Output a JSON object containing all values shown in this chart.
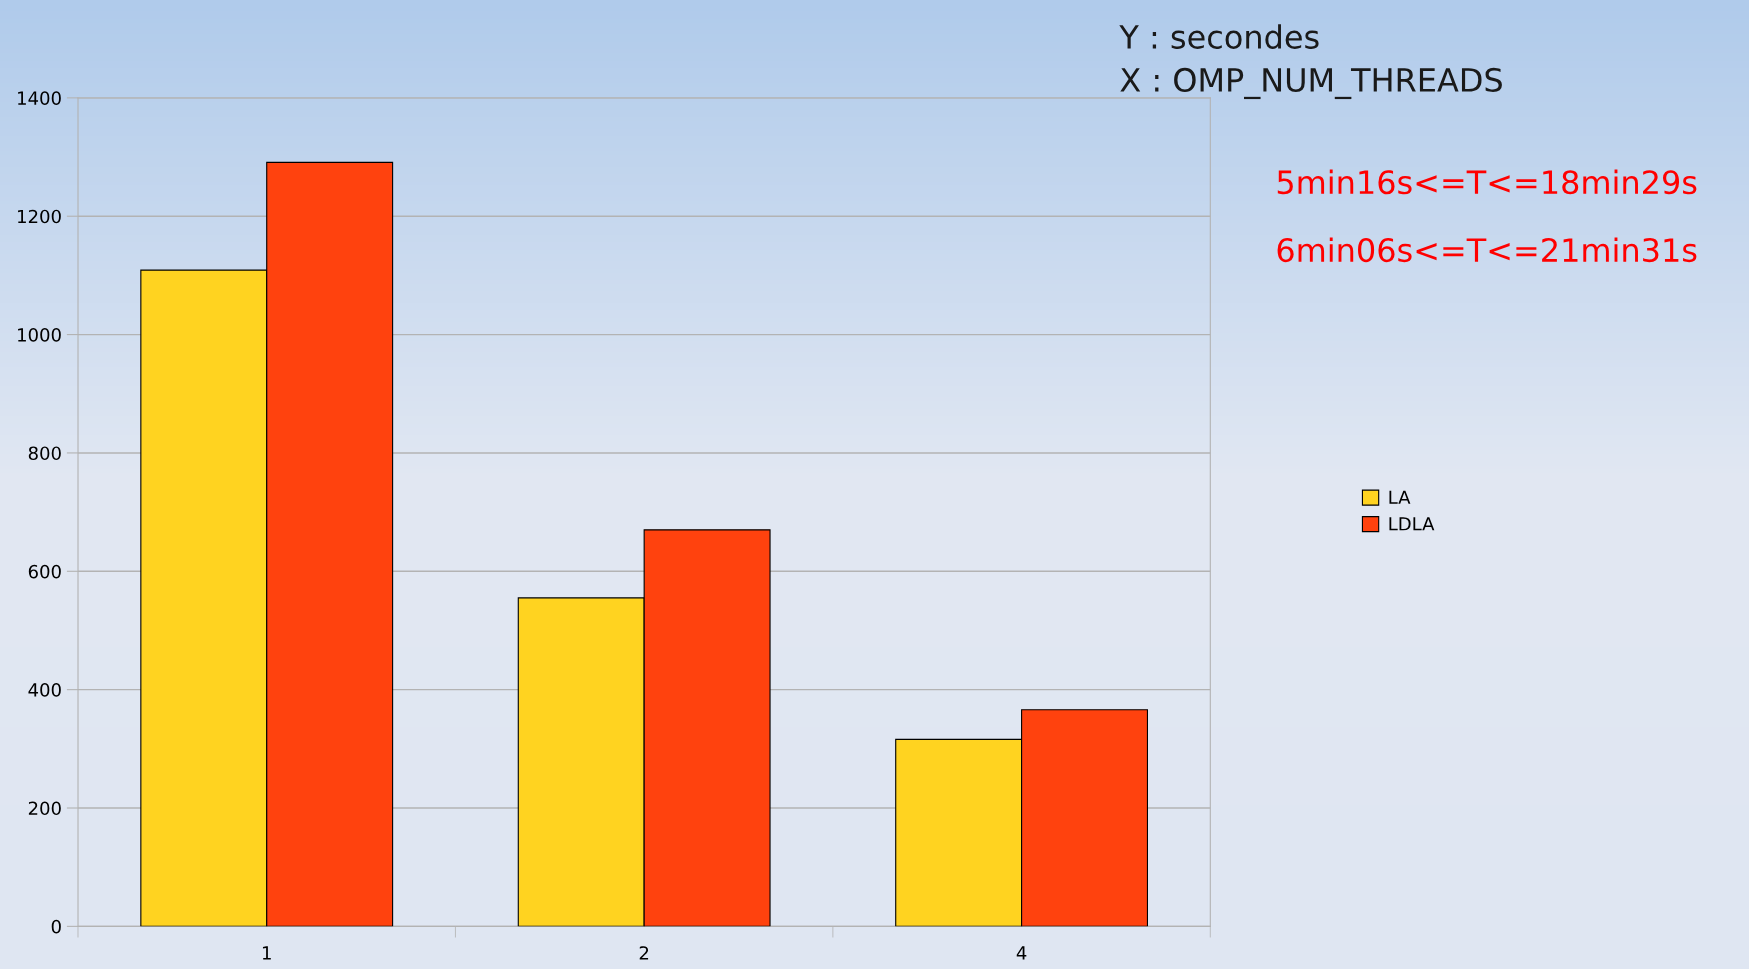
{
  "chart_data": {
    "type": "bar",
    "categories": [
      "1",
      "2",
      "4"
    ],
    "series": [
      {
        "name": "LA",
        "color": "#ffd320",
        "values": [
          1109,
          555,
          316
        ]
      },
      {
        "name": "LDLA",
        "color": "#ff420e",
        "values": [
          1291,
          670,
          366
        ]
      }
    ],
    "ylim": [
      0,
      1400
    ],
    "yticks": [
      0,
      200,
      400,
      600,
      800,
      1000,
      1200,
      1400
    ],
    "grid": "y",
    "legend": "right",
    "annotations": [
      "Y : secondes",
      "X : OMP_NUM_THREADS",
      "5min16s<=T<=18min29s",
      "6min06s<=T<=21min31s"
    ]
  }
}
